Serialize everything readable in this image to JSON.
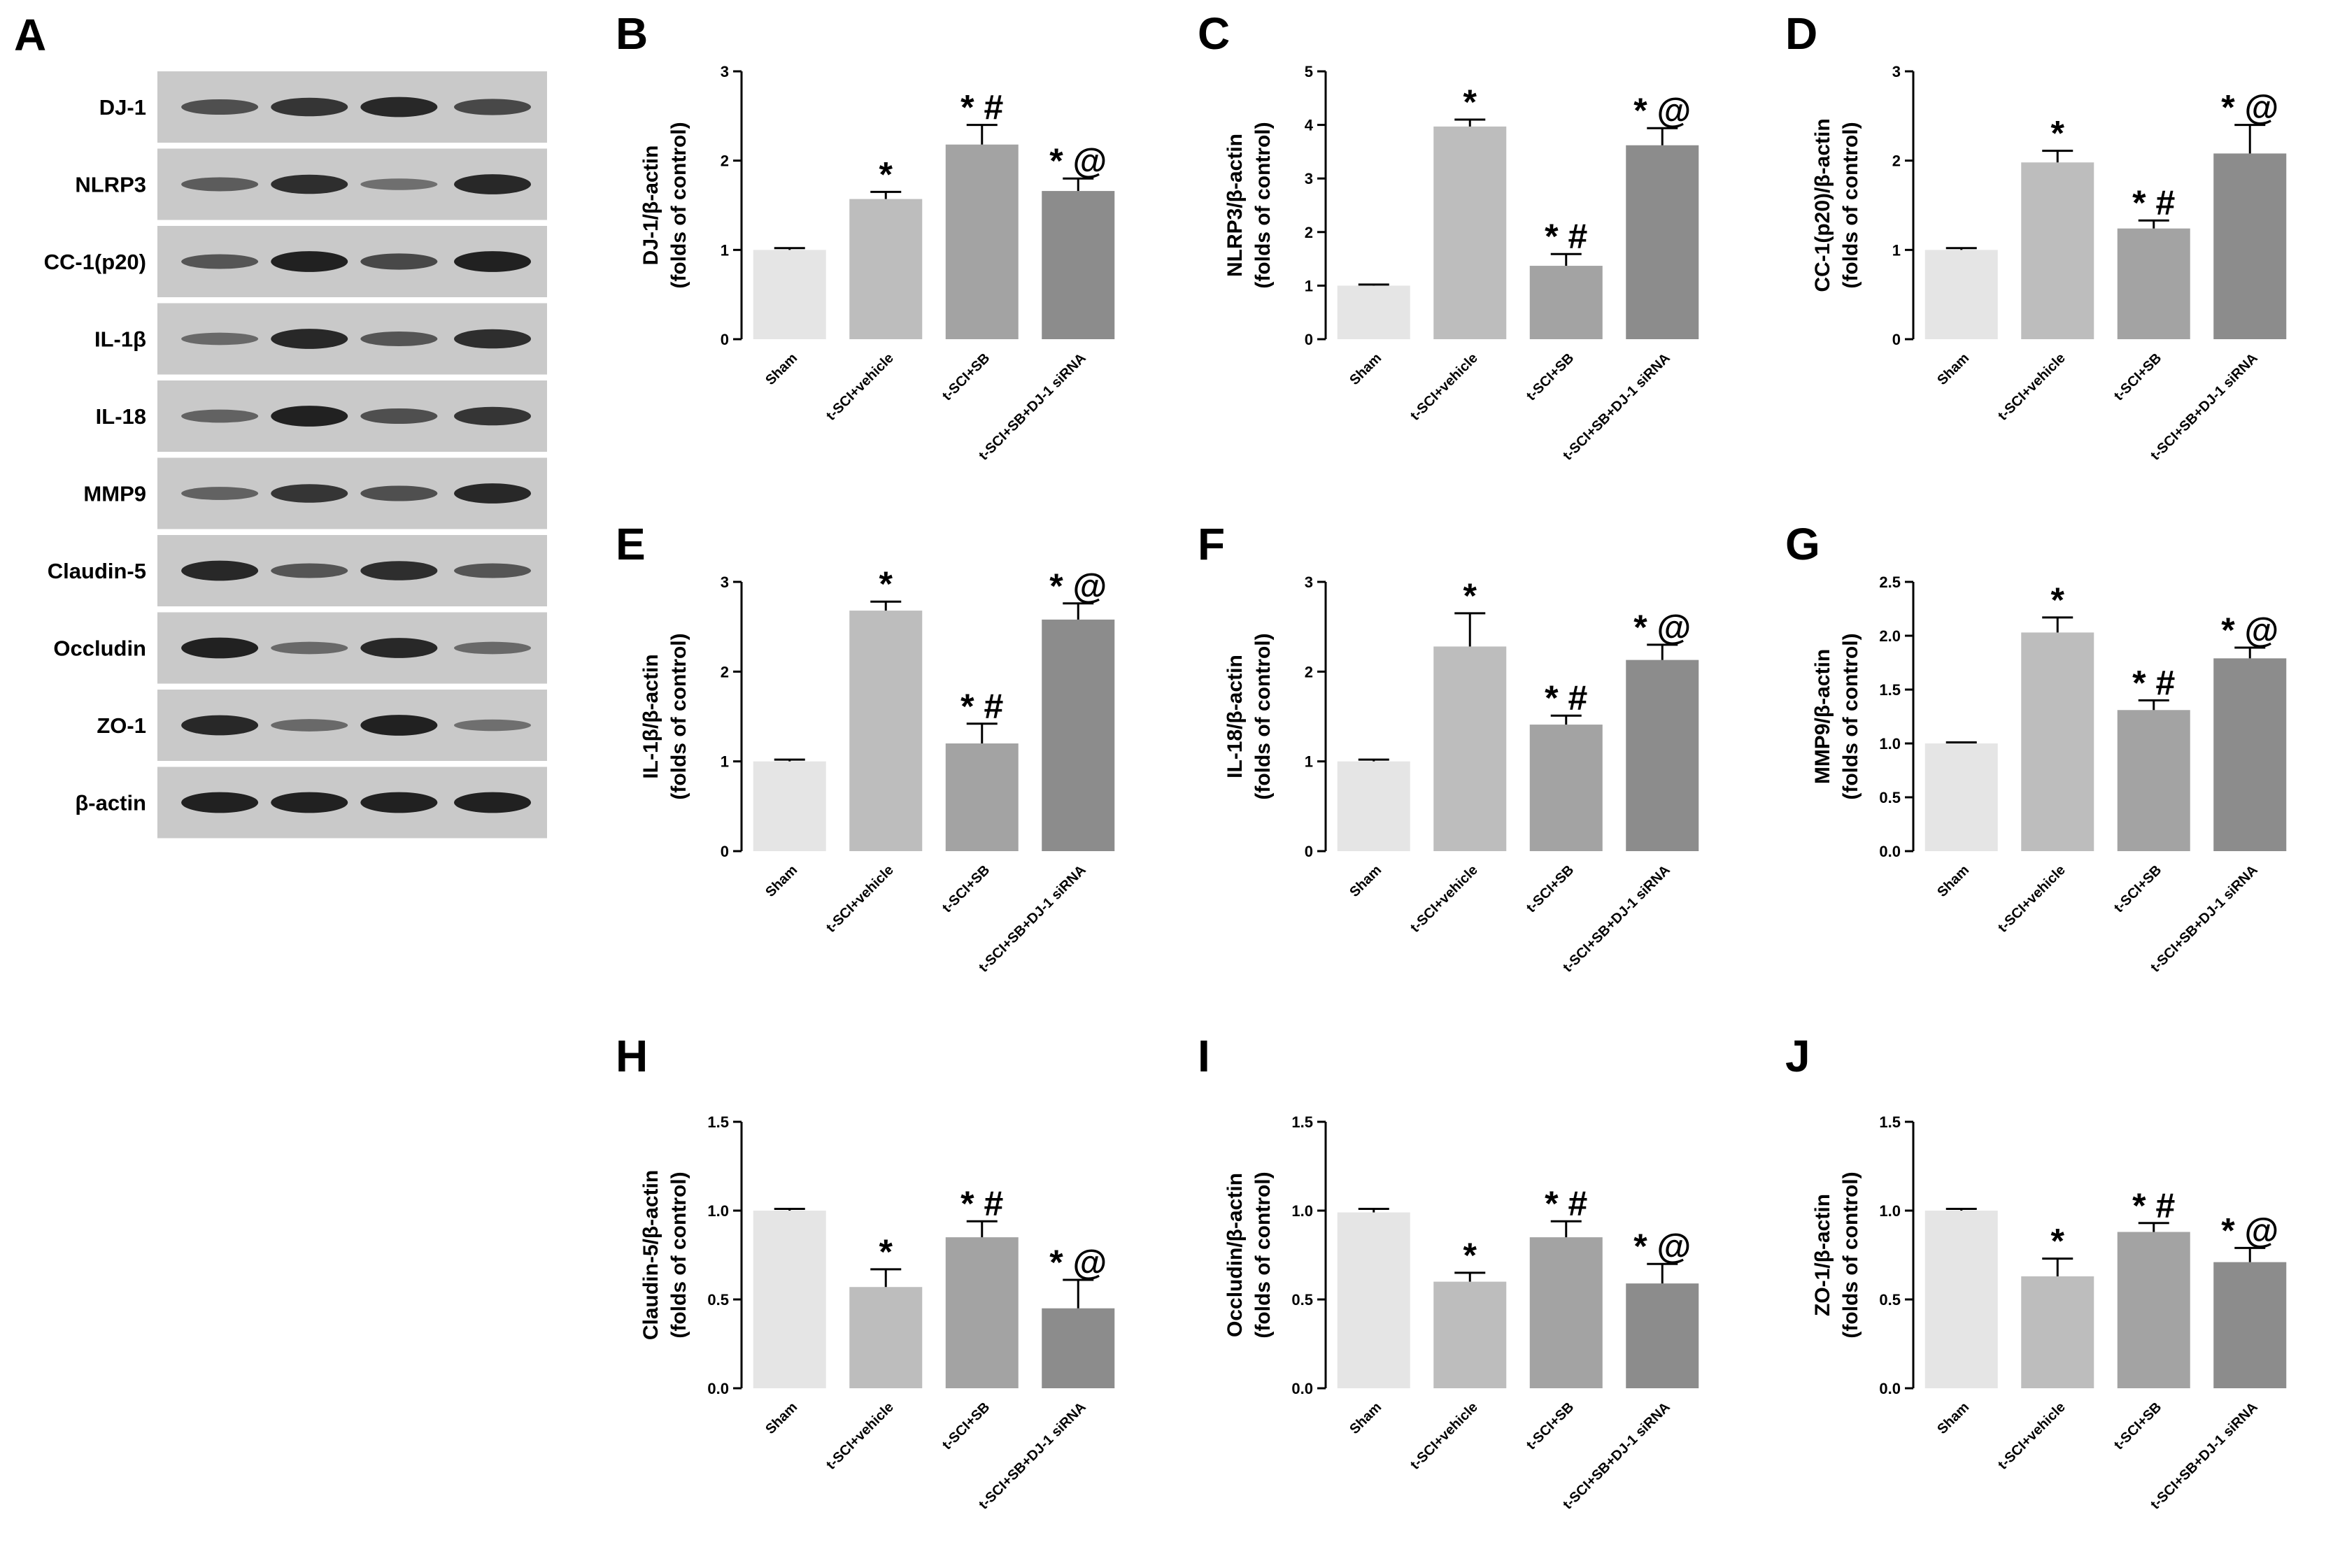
{
  "western_blot": {
    "letter": "A",
    "bands": [
      {
        "label": "DJ-1",
        "intensity": [
          0.55,
          0.75,
          0.85,
          0.6
        ]
      },
      {
        "label": "NLRP3",
        "intensity": [
          0.45,
          0.8,
          0.3,
          0.85
        ]
      },
      {
        "label": "CC-1(p20)",
        "intensity": [
          0.5,
          0.9,
          0.6,
          0.9
        ]
      },
      {
        "label": "IL-1β",
        "intensity": [
          0.35,
          0.85,
          0.5,
          0.8
        ]
      },
      {
        "label": "IL-18",
        "intensity": [
          0.4,
          0.9,
          0.55,
          0.75
        ]
      },
      {
        "label": "MMP9",
        "intensity": [
          0.4,
          0.75,
          0.55,
          0.85
        ]
      },
      {
        "label": "Claudin-5",
        "intensity": [
          0.85,
          0.5,
          0.8,
          0.5
        ]
      },
      {
        "label": "Occludin",
        "intensity": [
          0.9,
          0.35,
          0.85,
          0.35
        ]
      },
      {
        "label": "ZO-1",
        "intensity": [
          0.85,
          0.35,
          0.9,
          0.3
        ]
      },
      {
        "label": "β-actin",
        "intensity": [
          0.9,
          0.9,
          0.9,
          0.9
        ]
      }
    ]
  },
  "chart_data": [
    {
      "letter": "B",
      "type": "bar",
      "ylabel": [
        "DJ-1/β-actin",
        "(folds of control)"
      ],
      "ylim": [
        0,
        3
      ],
      "yticks": [
        "0",
        "1",
        "2",
        "3"
      ],
      "categories": [
        "Sham",
        "t-SCI+vehicle",
        "t-SCI+SB",
        "t-SCI+SB+DJ-1 siRNA"
      ],
      "values": [
        1.0,
        1.57,
        2.18,
        1.66
      ],
      "errors": [
        0.02,
        0.08,
        0.22,
        0.14
      ],
      "annotations": [
        "",
        "*",
        "*#",
        "*@"
      ],
      "colors": [
        "#e5e5e5",
        "#bdbdbd",
        "#a3a3a3",
        "#8c8c8c"
      ]
    },
    {
      "letter": "C",
      "type": "bar",
      "ylabel": [
        "NLRP3/β-actin",
        "(folds of control)"
      ],
      "ylim": [
        0,
        5
      ],
      "yticks": [
        "0",
        "1",
        "2",
        "3",
        "4",
        "5"
      ],
      "categories": [
        "Sham",
        "t-SCI+vehicle",
        "t-SCI+SB",
        "t-SCI+SB+DJ-1 siRNA"
      ],
      "values": [
        1.0,
        3.97,
        1.37,
        3.62
      ],
      "errors": [
        0.02,
        0.13,
        0.22,
        0.32
      ],
      "annotations": [
        "",
        "*",
        "*#",
        "*@"
      ],
      "colors": [
        "#e5e5e5",
        "#bdbdbd",
        "#a3a3a3",
        "#8c8c8c"
      ]
    },
    {
      "letter": "D",
      "type": "bar",
      "ylabel": [
        "CC-1(p20)/β-actin",
        "(folds of control)"
      ],
      "ylim": [
        0,
        3
      ],
      "yticks": [
        "0",
        "1",
        "2",
        "3"
      ],
      "categories": [
        "Sham",
        "t-SCI+vehicle",
        "t-SCI+SB",
        "t-SCI+SB+DJ-1 siRNA"
      ],
      "values": [
        1.0,
        1.98,
        1.24,
        2.08
      ],
      "errors": [
        0.02,
        0.13,
        0.09,
        0.32
      ],
      "annotations": [
        "",
        "*",
        "*#",
        "*@"
      ],
      "colors": [
        "#e5e5e5",
        "#bdbdbd",
        "#a3a3a3",
        "#8c8c8c"
      ]
    },
    {
      "letter": "E",
      "type": "bar",
      "ylabel": [
        "IL-1β/β-actin",
        "(folds of control)"
      ],
      "ylim": [
        0,
        3
      ],
      "yticks": [
        "0",
        "1",
        "2",
        "3"
      ],
      "categories": [
        "Sham",
        "t-SCI+vehicle",
        "t-SCI+SB",
        "t-SCI+SB+DJ-1 siRNA"
      ],
      "values": [
        1.0,
        2.68,
        1.2,
        2.58
      ],
      "errors": [
        0.02,
        0.1,
        0.22,
        0.18
      ],
      "annotations": [
        "",
        "*",
        "*#",
        "*@"
      ],
      "colors": [
        "#e5e5e5",
        "#bdbdbd",
        "#a3a3a3",
        "#8c8c8c"
      ]
    },
    {
      "letter": "F",
      "type": "bar",
      "ylabel": [
        "IL-18/β-actin",
        "(folds of control)"
      ],
      "ylim": [
        0,
        3
      ],
      "yticks": [
        "0",
        "1",
        "2",
        "3"
      ],
      "categories": [
        "Sham",
        "t-SCI+vehicle",
        "t-SCI+SB",
        "t-SCI+SB+DJ-1 siRNA"
      ],
      "values": [
        1.0,
        2.28,
        1.41,
        2.13
      ],
      "errors": [
        0.02,
        0.37,
        0.1,
        0.17
      ],
      "annotations": [
        "",
        "*",
        "*#",
        "*@"
      ],
      "colors": [
        "#e5e5e5",
        "#bdbdbd",
        "#a3a3a3",
        "#8c8c8c"
      ]
    },
    {
      "letter": "G",
      "type": "bar",
      "ylabel": [
        "MMP9/β-actin",
        "(folds of control)"
      ],
      "ylim": [
        0,
        2.5
      ],
      "yticks": [
        "0.0",
        "0.5",
        "1.0",
        "1.5",
        "2.0",
        "2.5"
      ],
      "categories": [
        "Sham",
        "t-SCI+vehicle",
        "t-SCI+SB",
        "t-SCI+SB+DJ-1 siRNA"
      ],
      "values": [
        1.0,
        2.03,
        1.31,
        1.79
      ],
      "errors": [
        0.01,
        0.14,
        0.09,
        0.1
      ],
      "annotations": [
        "",
        "*",
        "*#",
        "*@"
      ],
      "colors": [
        "#e5e5e5",
        "#bdbdbd",
        "#a3a3a3",
        "#8c8c8c"
      ]
    },
    {
      "letter": "H",
      "type": "bar",
      "ylabel": [
        "Claudin-5/β-actin",
        "(folds of control)"
      ],
      "ylim": [
        0,
        1.5
      ],
      "yticks": [
        "0.0",
        "0.5",
        "1.0",
        "1.5"
      ],
      "categories": [
        "Sham",
        "t-SCI+vehicle",
        "t-SCI+SB",
        "t-SCI+SB+DJ-1 siRNA"
      ],
      "values": [
        1.0,
        0.57,
        0.85,
        0.45
      ],
      "errors": [
        0.01,
        0.1,
        0.09,
        0.16
      ],
      "annotations": [
        "",
        "*",
        "*#",
        "*@"
      ],
      "colors": [
        "#e5e5e5",
        "#bdbdbd",
        "#a3a3a3",
        "#8c8c8c"
      ]
    },
    {
      "letter": "I",
      "type": "bar",
      "ylabel": [
        "Occludin/β-actin",
        "(folds of control)"
      ],
      "ylim": [
        0,
        1.5
      ],
      "yticks": [
        "0.0",
        "0.5",
        "1.0",
        "1.5"
      ],
      "categories": [
        "Sham",
        "t-SCI+vehicle",
        "t-SCI+SB",
        "t-SCI+SB+DJ-1 siRNA"
      ],
      "values": [
        0.99,
        0.6,
        0.85,
        0.59
      ],
      "errors": [
        0.02,
        0.05,
        0.09,
        0.11
      ],
      "annotations": [
        "",
        "*",
        "*#",
        "*@"
      ],
      "colors": [
        "#e5e5e5",
        "#bdbdbd",
        "#a3a3a3",
        "#8c8c8c"
      ]
    },
    {
      "letter": "J",
      "type": "bar",
      "ylabel": [
        "ZO-1/β-actin",
        "(folds of control)"
      ],
      "ylim": [
        0,
        1.5
      ],
      "yticks": [
        "0.0",
        "0.5",
        "1.0",
        "1.5"
      ],
      "categories": [
        "Sham",
        "t-SCI+vehicle",
        "t-SCI+SB",
        "t-SCI+SB+DJ-1 siRNA"
      ],
      "values": [
        1.0,
        0.63,
        0.88,
        0.71
      ],
      "errors": [
        0.01,
        0.1,
        0.05,
        0.08
      ],
      "annotations": [
        "",
        "*",
        "*#",
        "*@"
      ],
      "colors": [
        "#e5e5e5",
        "#bdbdbd",
        "#a3a3a3",
        "#8c8c8c"
      ]
    }
  ]
}
